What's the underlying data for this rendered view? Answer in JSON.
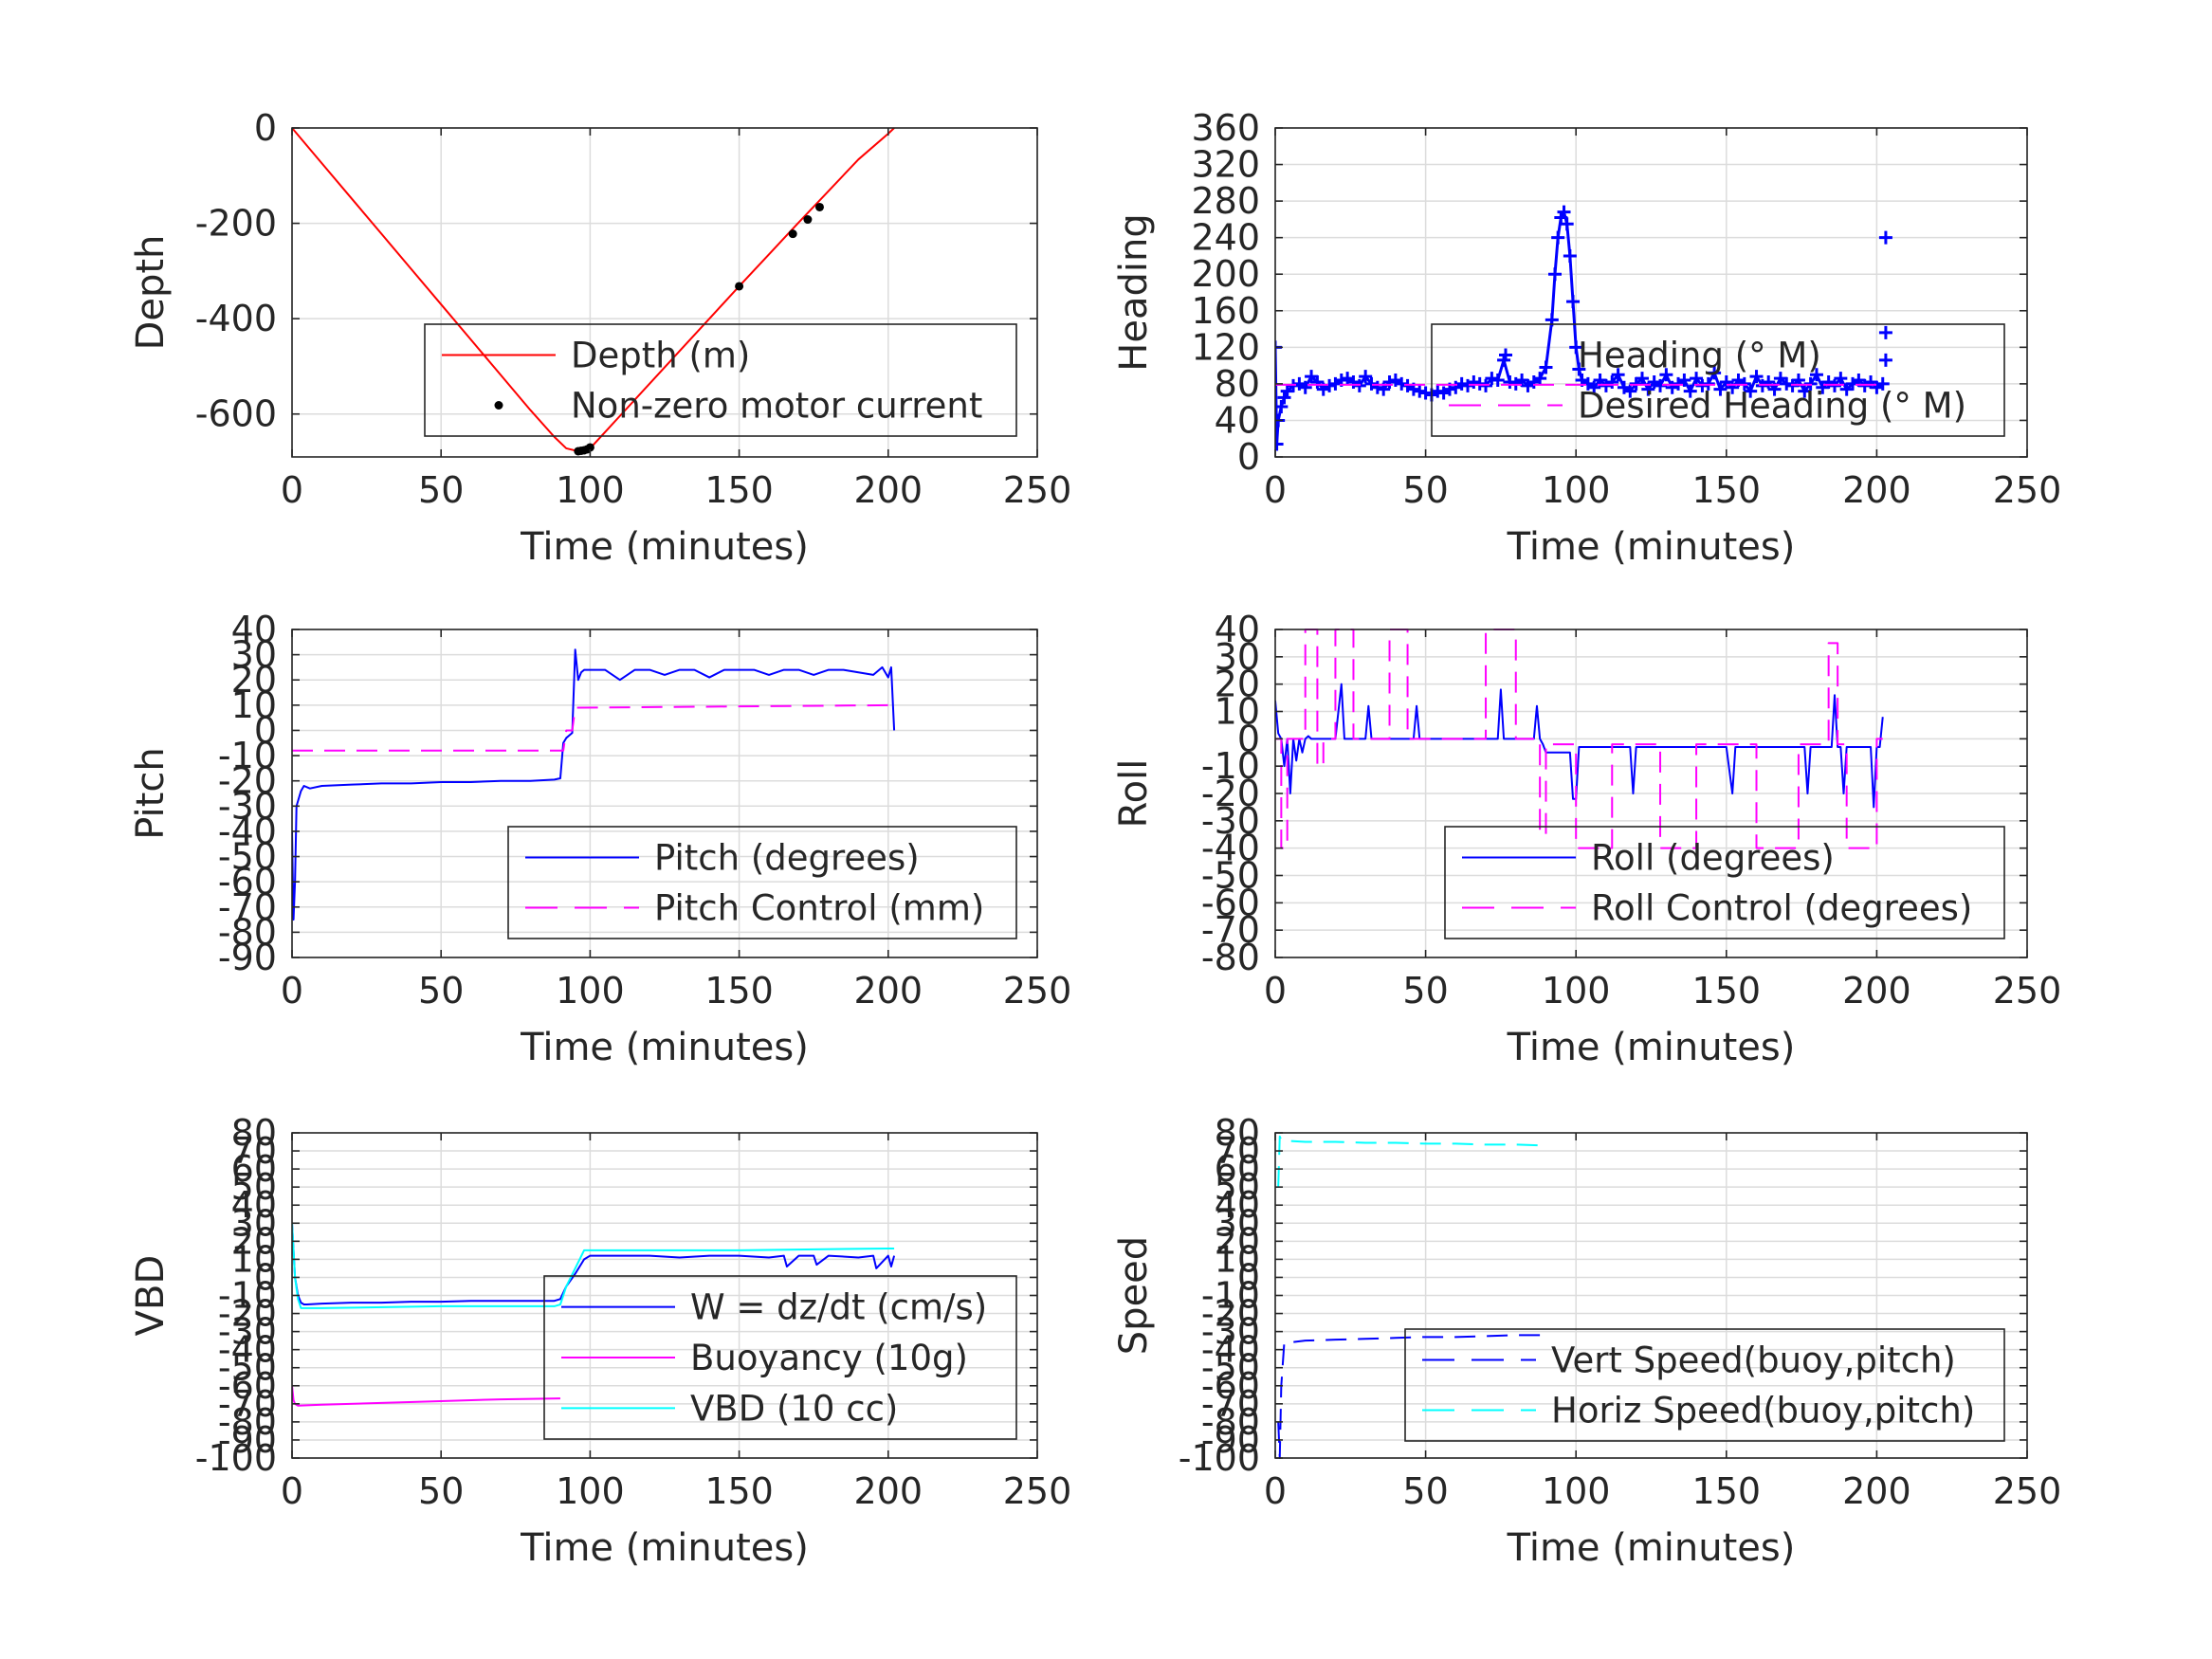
{
  "chart_data": [
    {
      "id": "depth",
      "type": "line",
      "xlabel": "Time (minutes)",
      "ylabel": "Depth",
      "xlim": [
        0,
        250
      ],
      "ylim": [
        -690,
        0
      ],
      "xticks": [
        0,
        50,
        100,
        150,
        200,
        250
      ],
      "yticks": [
        0,
        -200,
        -400,
        -600
      ],
      "grid": true,
      "legend": "bottom-right",
      "series": [
        {
          "name": "Depth (m)",
          "color": "#ff0000",
          "style": "solid",
          "x": [
            0,
            10,
            20,
            30,
            40,
            50,
            60,
            70,
            80,
            88,
            92,
            96,
            98,
            100,
            110,
            120,
            130,
            140,
            150,
            160,
            170,
            180,
            190,
            200,
            202
          ],
          "y": [
            0,
            -74,
            -148,
            -222,
            -296,
            -370,
            -444,
            -518,
            -592,
            -648,
            -672,
            -678,
            -676,
            -672,
            -604,
            -536,
            -468,
            -400,
            -332,
            -265,
            -198,
            -132,
            -66,
            -12,
            0
          ]
        },
        {
          "name": "Non-zero motor current",
          "color": "#000000",
          "style": "dots",
          "x": [
            96,
            97,
            98,
            99,
            100,
            150,
            168,
            173,
            177
          ],
          "y": [
            -678,
            -677,
            -676,
            -674,
            -670,
            -332,
            -222,
            -192,
            -166
          ]
        }
      ]
    },
    {
      "id": "heading",
      "type": "scatter",
      "xlabel": "Time (minutes)",
      "ylabel": "Heading",
      "xlim": [
        0,
        250
      ],
      "ylim": [
        0,
        360
      ],
      "xticks": [
        0,
        50,
        100,
        150,
        200,
        250
      ],
      "yticks": [
        0,
        40,
        80,
        120,
        160,
        200,
        240,
        280,
        320,
        360
      ],
      "grid": true,
      "legend": "bottom-right",
      "series": [
        {
          "name": "Heading (° M)",
          "color": "#0000ff",
          "style": "plus",
          "x": [
            0,
            0.5,
            1,
            2,
            3,
            4,
            6,
            8,
            10,
            12,
            14,
            16,
            18,
            20,
            22,
            24,
            26,
            28,
            30,
            32,
            34,
            36,
            38,
            40,
            42,
            44,
            46,
            48,
            50,
            52,
            54,
            56,
            58,
            60,
            62,
            64,
            66,
            68,
            70,
            72,
            74,
            76,
            78,
            80,
            82,
            84,
            86,
            88,
            90,
            92,
            93,
            94,
            95,
            96,
            97,
            98,
            99,
            100,
            101,
            102,
            104,
            106,
            108,
            110,
            112,
            114,
            116,
            118,
            120,
            122,
            124,
            126,
            128,
            130,
            132,
            134,
            136,
            138,
            140,
            142,
            144,
            146,
            148,
            150,
            152,
            154,
            156,
            158,
            160,
            162,
            164,
            166,
            168,
            170,
            172,
            174,
            176,
            178,
            180,
            182,
            184,
            186,
            188,
            190,
            192,
            194,
            196,
            198,
            200,
            202,
            203,
            203,
            203
          ],
          "y": [
            120,
            14,
            40,
            55,
            65,
            72,
            78,
            80,
            76,
            88,
            82,
            74,
            78,
            80,
            84,
            86,
            82,
            78,
            88,
            80,
            76,
            74,
            82,
            84,
            80,
            78,
            74,
            72,
            70,
            68,
            72,
            70,
            74,
            76,
            80,
            78,
            82,
            80,
            78,
            86,
            84,
            106,
            82,
            80,
            84,
            78,
            82,
            86,
            98,
            150,
            200,
            240,
            262,
            268,
            255,
            220,
            170,
            120,
            96,
            84,
            80,
            76,
            84,
            78,
            82,
            90,
            76,
            72,
            80,
            86,
            74,
            82,
            78,
            90,
            76,
            80,
            84,
            72,
            86,
            78,
            80,
            92,
            74,
            82,
            76,
            84,
            80,
            72,
            88,
            78,
            82,
            74,
            86,
            80,
            78,
            84,
            72,
            80,
            90,
            76,
            82,
            78,
            86,
            74,
            80,
            84,
            78,
            82,
            76,
            80,
            240,
            136,
            106
          ]
        },
        {
          "name": "Desired Heading (° M)",
          "color": "#ff00ff",
          "style": "dashed",
          "x": [
            0,
            203
          ],
          "y": [
            79,
            79
          ]
        }
      ]
    },
    {
      "id": "pitch",
      "type": "line",
      "xlabel": "Time (minutes)",
      "ylabel": "Pitch",
      "xlim": [
        0,
        250
      ],
      "ylim": [
        -90,
        40
      ],
      "xticks": [
        0,
        50,
        100,
        150,
        200,
        250
      ],
      "yticks": [
        40,
        30,
        20,
        10,
        0,
        -10,
        -20,
        -30,
        -40,
        -50,
        -60,
        -70,
        -80,
        -90
      ],
      "grid": true,
      "legend": "bottom-right",
      "series": [
        {
          "name": "Pitch (degrees)",
          "color": "#0000ff",
          "style": "solid",
          "x": [
            0,
            0.5,
            1,
            1.5,
            2,
            3,
            4,
            6,
            10,
            20,
            30,
            40,
            50,
            60,
            70,
            80,
            88,
            90,
            91,
            92,
            93,
            94,
            95,
            96,
            97,
            98,
            100,
            105,
            110,
            115,
            120,
            125,
            130,
            135,
            140,
            145,
            150,
            155,
            160,
            165,
            170,
            175,
            180,
            185,
            190,
            195,
            198,
            200,
            201,
            202
          ],
          "y": [
            -40,
            -75,
            -60,
            -30,
            -28,
            -24,
            -22,
            -23,
            -22,
            -21.5,
            -21,
            -21,
            -20.5,
            -20.5,
            -20,
            -20,
            -19.5,
            -19,
            -5,
            -3,
            -2,
            -1,
            32,
            20,
            23,
            24,
            24,
            24,
            20,
            24,
            24,
            22,
            24,
            24,
            21,
            24,
            24,
            24,
            22,
            24,
            24,
            22,
            24,
            24,
            23,
            22,
            25,
            21,
            25,
            0
          ]
        },
        {
          "name": "Pitch Control (mm)",
          "color": "#ff00ff",
          "style": "dashed",
          "x": [
            0,
            91,
            92,
            94,
            95,
            96,
            150,
            202
          ],
          "y": [
            -8,
            -8,
            0,
            0,
            9,
            9,
            9.5,
            10
          ]
        }
      ]
    },
    {
      "id": "roll",
      "type": "line",
      "xlabel": "Time (minutes)",
      "ylabel": "Roll",
      "xlim": [
        0,
        250
      ],
      "ylim": [
        -80,
        40
      ],
      "xticks": [
        0,
        50,
        100,
        150,
        200,
        250
      ],
      "yticks": [
        40,
        30,
        20,
        10,
        0,
        -10,
        -20,
        -30,
        -40,
        -50,
        -60,
        -70,
        -80
      ],
      "grid": true,
      "legend": "bottom-right",
      "series": [
        {
          "name": "Roll (degrees)",
          "color": "#0000ff",
          "style": "solid",
          "x": [
            0,
            1,
            2,
            3,
            4,
            5,
            6,
            7,
            8,
            9,
            10,
            11,
            12,
            14,
            20,
            22,
            23,
            24,
            30,
            31,
            32,
            33,
            40,
            46,
            47,
            48,
            50,
            60,
            70,
            74,
            75,
            76,
            80,
            86,
            87,
            88,
            89,
            90,
            95,
            98,
            99,
            100,
            101,
            102,
            103,
            110,
            118,
            119,
            120,
            130,
            140,
            150,
            152,
            153,
            154,
            160,
            170,
            176,
            177,
            178,
            185,
            186,
            187,
            188,
            189,
            190,
            195,
            198,
            199,
            200,
            201,
            202
          ],
          "y": [
            14,
            2,
            0,
            -10,
            0,
            -20,
            0,
            -8,
            0,
            -5,
            0,
            1,
            0,
            0,
            0,
            20,
            0,
            0,
            0,
            12,
            0,
            0,
            0,
            0,
            12,
            0,
            0,
            0,
            0,
            0,
            18,
            0,
            0,
            0,
            12,
            0,
            -2,
            -5,
            -5,
            -5,
            -22,
            -22,
            -3,
            -3,
            -3,
            -3,
            -3,
            -20,
            -3,
            -3,
            -3,
            -3,
            -20,
            -3,
            -3,
            -3,
            -3,
            -3,
            -20,
            -3,
            -3,
            16,
            -3,
            -3,
            -20,
            -3,
            -3,
            -3,
            -25,
            -3,
            -3,
            8
          ]
        },
        {
          "name": "Roll Control (degrees)",
          "color": "#ff00ff",
          "style": "dashed",
          "x": [
            0,
            2,
            2,
            4,
            4,
            10,
            10,
            14,
            14,
            16,
            16,
            20,
            20,
            26,
            26,
            38,
            38,
            44,
            44,
            70,
            70,
            80,
            80,
            88,
            88,
            90,
            90,
            100,
            100,
            112,
            112,
            128,
            128,
            140,
            140,
            160,
            160,
            174,
            174,
            184,
            184,
            187,
            187,
            190,
            190,
            200,
            200,
            202
          ],
          "y": [
            0,
            0,
            -40,
            -40,
            0,
            0,
            40,
            40,
            -10,
            -10,
            0,
            0,
            40,
            40,
            0,
            0,
            40,
            40,
            0,
            0,
            40,
            40,
            0,
            0,
            -35,
            -35,
            -2,
            -2,
            -40,
            -40,
            -2,
            -2,
            -40,
            -40,
            -2,
            -2,
            -40,
            -40,
            -2,
            -2,
            35,
            35,
            -2,
            -2,
            -40,
            -40,
            0,
            0
          ]
        }
      ]
    },
    {
      "id": "vbd",
      "type": "line",
      "xlabel": "Time (minutes)",
      "ylabel": "VBD",
      "xlim": [
        0,
        250
      ],
      "ylim": [
        -100,
        80
      ],
      "xticks": [
        0,
        50,
        100,
        150,
        200,
        250
      ],
      "yticks": [
        80,
        70,
        60,
        50,
        40,
        30,
        20,
        10,
        0,
        -10,
        -20,
        -30,
        -40,
        -50,
        -60,
        -70,
        -80,
        -90,
        -100
      ],
      "grid": true,
      "legend": "bottom-right",
      "series": [
        {
          "name": "W = dz/dt (cm/s)",
          "color": "#0000ff",
          "style": "solid",
          "x": [
            0,
            1,
            2,
            3,
            4,
            5,
            10,
            20,
            30,
            40,
            50,
            60,
            70,
            80,
            88,
            90,
            92,
            95,
            98,
            100,
            110,
            120,
            130,
            140,
            150,
            160,
            165,
            166,
            170,
            175,
            176,
            180,
            190,
            195,
            196,
            200,
            201,
            202
          ],
          "y": [
            30,
            0,
            -10,
            -14,
            -15,
            -15,
            -14.5,
            -14,
            -14,
            -13.5,
            -13.5,
            -13,
            -13,
            -13,
            -13,
            -12,
            -5,
            2,
            10,
            12,
            12,
            12,
            11,
            12,
            12,
            11,
            12,
            6,
            12,
            12,
            7,
            12,
            11,
            12,
            5,
            12,
            6,
            12
          ]
        },
        {
          "name": "Buoyancy (10g)",
          "color": "#ff00ff",
          "style": "solid",
          "x": [
            0,
            0.5,
            1,
            2,
            10,
            30,
            50,
            70,
            90
          ],
          "y": [
            -60,
            -68,
            -70,
            -71,
            -70.5,
            -69.5,
            -68.5,
            -67.5,
            -67
          ]
        },
        {
          "name": "VBD (10 cc)",
          "color": "#00ffff",
          "style": "solid",
          "x": [
            0,
            1,
            2,
            3,
            10,
            50,
            88,
            90,
            92,
            95,
            98,
            100,
            150,
            200,
            202
          ],
          "y": [
            30,
            0,
            -12,
            -17,
            -17,
            -16,
            -16,
            -15,
            -5,
            5,
            15,
            15,
            15,
            16,
            16
          ]
        }
      ]
    },
    {
      "id": "speed",
      "type": "line",
      "xlabel": "Time (minutes)",
      "ylabel": "Speed",
      "xlim": [
        0,
        250
      ],
      "ylim": [
        -100,
        80
      ],
      "xticks": [
        0,
        50,
        100,
        150,
        200,
        250
      ],
      "yticks": [
        80,
        70,
        60,
        50,
        40,
        30,
        20,
        10,
        0,
        -10,
        -20,
        -30,
        -40,
        -50,
        -60,
        -70,
        -80,
        -90,
        -100
      ],
      "grid": true,
      "legend": "bottom-right",
      "series": [
        {
          "name": "Vert Speed(buoy,pitch)",
          "color": "#0000ff",
          "style": "dashed",
          "x": [
            1,
            1.5,
            2,
            3,
            5,
            10,
            20,
            30,
            40,
            50,
            60,
            70,
            80,
            90
          ],
          "y": [
            -80,
            -100,
            -60,
            -36,
            -36,
            -35,
            -34.5,
            -34,
            -33.5,
            -33,
            -33,
            -32.5,
            -32,
            -32
          ]
        },
        {
          "name": "Horiz Speed(buoy,pitch)",
          "color": "#00ffff",
          "style": "dashed",
          "x": [
            1,
            1.5,
            2,
            3,
            5,
            10,
            20,
            30,
            40,
            50,
            60,
            70,
            80,
            90
          ],
          "y": [
            50,
            78,
            76,
            76,
            75.5,
            75,
            75,
            74.5,
            74.5,
            74,
            74,
            73.5,
            73.5,
            73
          ]
        }
      ]
    }
  ]
}
